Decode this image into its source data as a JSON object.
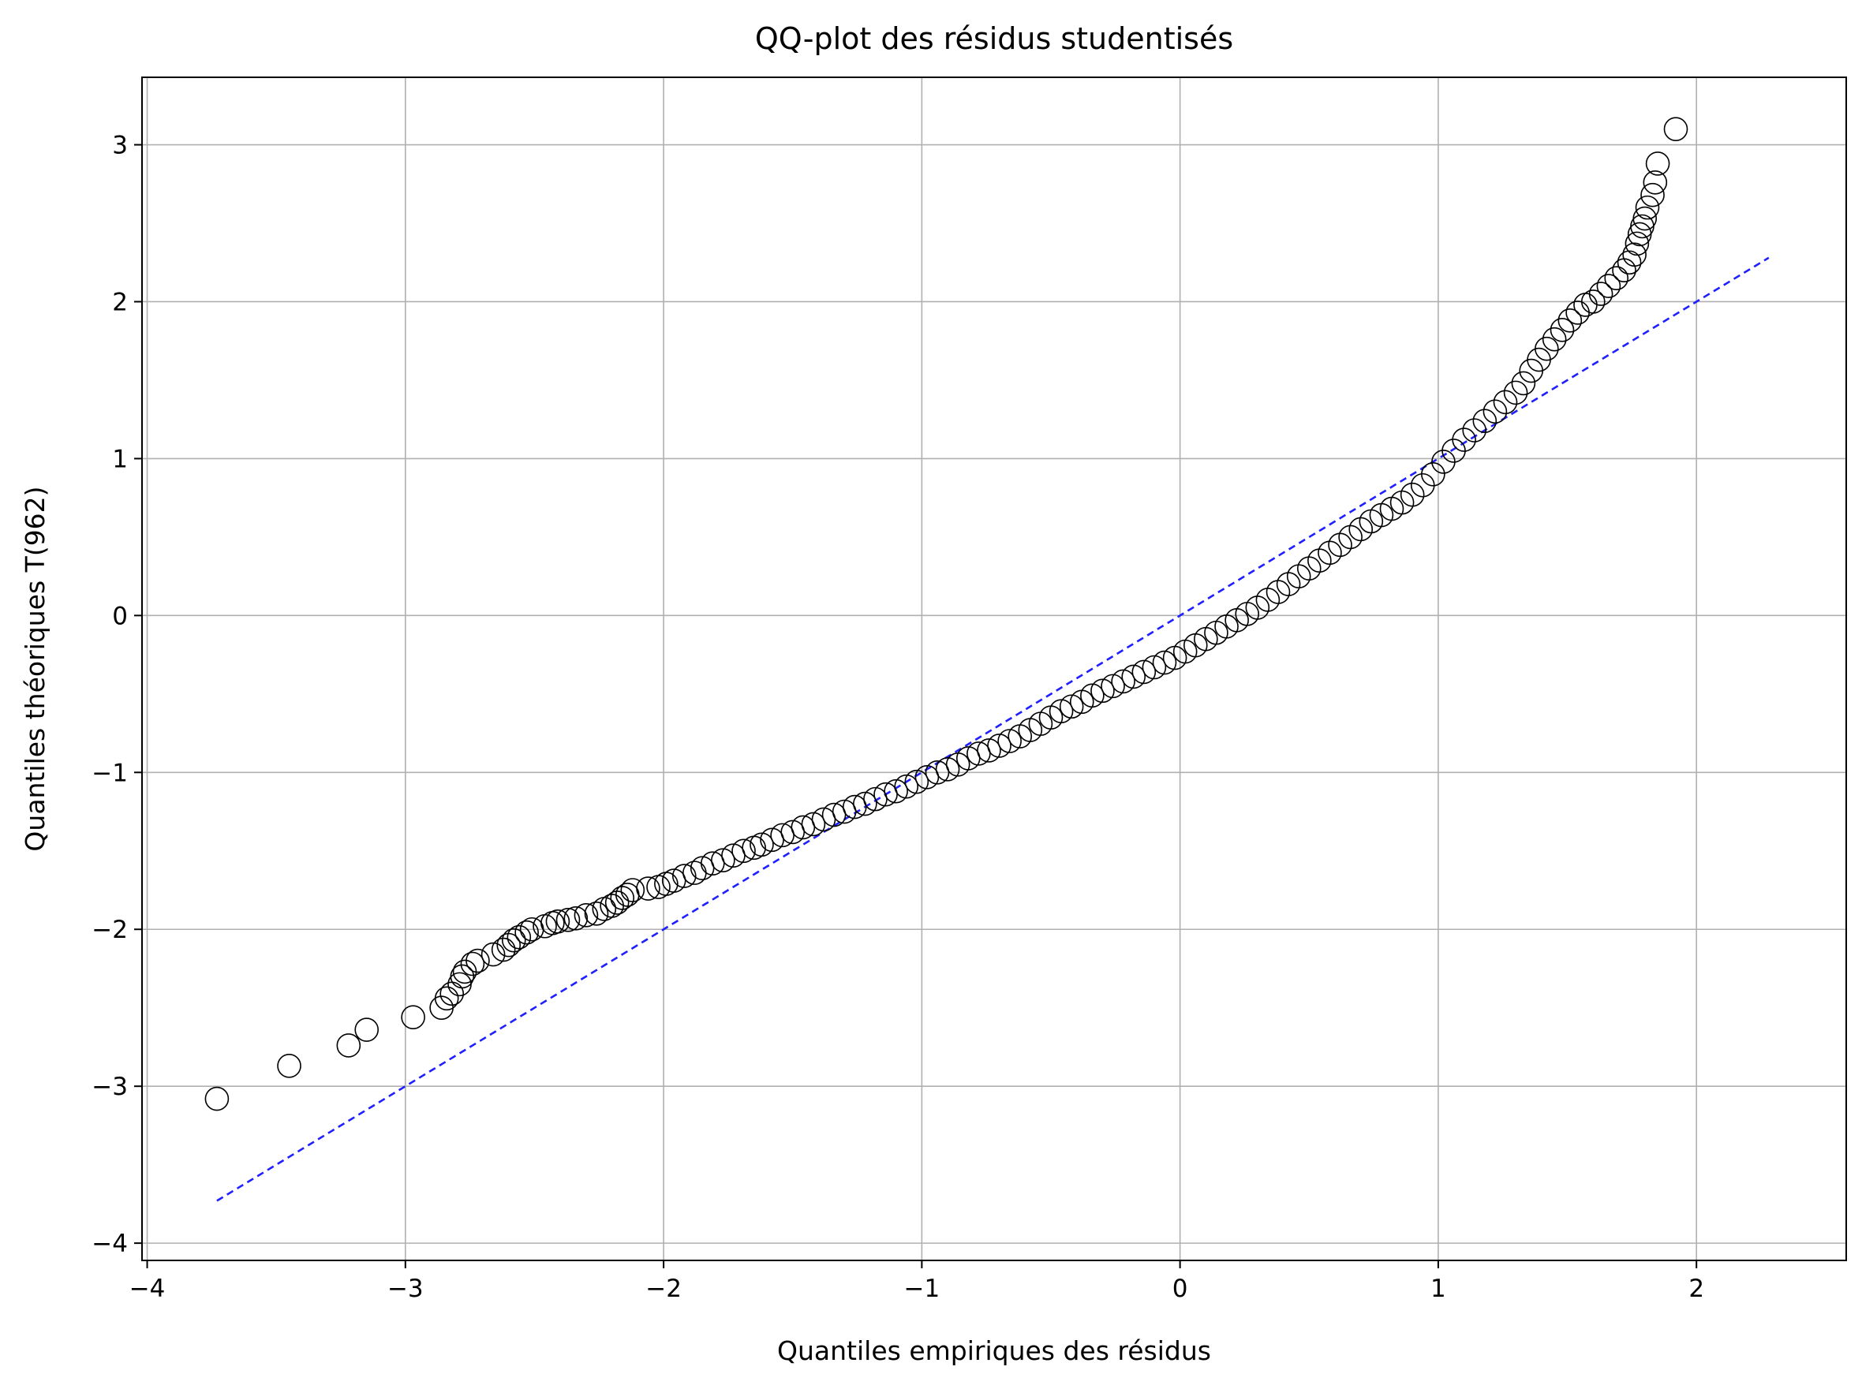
{
  "chart_data": {
    "type": "scatter",
    "title": "QQ-plot des résidus studentisés",
    "xlabel": "Quantiles empiriques des résidus",
    "ylabel": "Quantiles théoriques T(962)",
    "xlim": [
      -4.02,
      2.58
    ],
    "ylim": [
      -4.11,
      3.43
    ],
    "xticks": [
      {
        "value": -4,
        "label": "−4"
      },
      {
        "value": -3,
        "label": "−3"
      },
      {
        "value": -2,
        "label": "−2"
      },
      {
        "value": -1,
        "label": "−1"
      },
      {
        "value": 0,
        "label": "0"
      },
      {
        "value": 1,
        "label": "1"
      },
      {
        "value": 2,
        "label": "2"
      }
    ],
    "yticks": [
      {
        "value": -4,
        "label": "−4"
      },
      {
        "value": -3,
        "label": "−3"
      },
      {
        "value": -2,
        "label": "−2"
      },
      {
        "value": -1,
        "label": "−1"
      },
      {
        "value": 0,
        "label": "0"
      },
      {
        "value": 1,
        "label": "1"
      },
      {
        "value": 2,
        "label": "2"
      },
      {
        "value": 3,
        "label": "3"
      }
    ],
    "grid": true,
    "marker": "open-circle",
    "marker_color": "#000000",
    "reference_line": {
      "style": "dashed",
      "color": "#1f1fff",
      "from": [
        -3.73,
        -3.73
      ],
      "to": [
        2.28,
        2.28
      ]
    },
    "points": [
      [
        -3.73,
        -3.08
      ],
      [
        -3.45,
        -2.87
      ],
      [
        -3.22,
        -2.74
      ],
      [
        -3.15,
        -2.64
      ],
      [
        -2.97,
        -2.56
      ],
      [
        -2.86,
        -2.5
      ],
      [
        -2.84,
        -2.44
      ],
      [
        -2.82,
        -2.41
      ],
      [
        -2.79,
        -2.35
      ],
      [
        -2.78,
        -2.3
      ],
      [
        -2.77,
        -2.27
      ],
      [
        -2.74,
        -2.22
      ],
      [
        -2.72,
        -2.2
      ],
      [
        -2.66,
        -2.16
      ],
      [
        -2.62,
        -2.13
      ],
      [
        -2.6,
        -2.1
      ],
      [
        -2.58,
        -2.07
      ],
      [
        -2.56,
        -2.05
      ],
      [
        -2.53,
        -2.02
      ],
      [
        -2.51,
        -2.0
      ],
      [
        -2.46,
        -1.98
      ],
      [
        -2.43,
        -1.96
      ],
      [
        -2.41,
        -1.95
      ],
      [
        -2.37,
        -1.94
      ],
      [
        -2.34,
        -1.93
      ],
      [
        -2.3,
        -1.91
      ],
      [
        -2.26,
        -1.9
      ],
      [
        -2.23,
        -1.87
      ],
      [
        -2.2,
        -1.85
      ],
      [
        -2.18,
        -1.83
      ],
      [
        -2.16,
        -1.8
      ],
      [
        -2.14,
        -1.78
      ],
      [
        -2.12,
        -1.75
      ],
      [
        -2.06,
        -1.74
      ],
      [
        -2.02,
        -1.73
      ],
      [
        -1.99,
        -1.71
      ],
      [
        -1.96,
        -1.69
      ],
      [
        -1.92,
        -1.66
      ],
      [
        -1.88,
        -1.64
      ],
      [
        -1.85,
        -1.61
      ],
      [
        -1.81,
        -1.58
      ],
      [
        -1.77,
        -1.56
      ],
      [
        -1.73,
        -1.53
      ],
      [
        -1.69,
        -1.5
      ],
      [
        -1.65,
        -1.48
      ],
      [
        -1.62,
        -1.46
      ],
      [
        -1.58,
        -1.43
      ],
      [
        -1.54,
        -1.4
      ],
      [
        -1.5,
        -1.38
      ],
      [
        -1.46,
        -1.35
      ],
      [
        -1.42,
        -1.33
      ],
      [
        -1.38,
        -1.3
      ],
      [
        -1.34,
        -1.27
      ],
      [
        -1.3,
        -1.25
      ],
      [
        -1.26,
        -1.22
      ],
      [
        -1.22,
        -1.2
      ],
      [
        -1.18,
        -1.17
      ],
      [
        -1.14,
        -1.14
      ],
      [
        -1.1,
        -1.12
      ],
      [
        -1.06,
        -1.09
      ],
      [
        -1.02,
        -1.06
      ],
      [
        -0.98,
        -1.03
      ],
      [
        -0.94,
        -1.0
      ],
      [
        -0.9,
        -0.98
      ],
      [
        -0.86,
        -0.95
      ],
      [
        -0.82,
        -0.91
      ],
      [
        -0.78,
        -0.88
      ],
      [
        -0.74,
        -0.86
      ],
      [
        -0.7,
        -0.83
      ],
      [
        -0.66,
        -0.8
      ],
      [
        -0.62,
        -0.77
      ],
      [
        -0.58,
        -0.73
      ],
      [
        -0.54,
        -0.69
      ],
      [
        -0.5,
        -0.65
      ],
      [
        -0.46,
        -0.61
      ],
      [
        -0.42,
        -0.58
      ],
      [
        -0.38,
        -0.55
      ],
      [
        -0.34,
        -0.51
      ],
      [
        -0.3,
        -0.48
      ],
      [
        -0.26,
        -0.45
      ],
      [
        -0.22,
        -0.42
      ],
      [
        -0.18,
        -0.39
      ],
      [
        -0.14,
        -0.36
      ],
      [
        -0.1,
        -0.33
      ],
      [
        -0.06,
        -0.3
      ],
      [
        -0.02,
        -0.27
      ],
      [
        0.02,
        -0.23
      ],
      [
        0.06,
        -0.19
      ],
      [
        0.1,
        -0.15
      ],
      [
        0.14,
        -0.11
      ],
      [
        0.18,
        -0.07
      ],
      [
        0.22,
        -0.03
      ],
      [
        0.26,
        0.01
      ],
      [
        0.3,
        0.05
      ],
      [
        0.34,
        0.1
      ],
      [
        0.38,
        0.15
      ],
      [
        0.42,
        0.2
      ],
      [
        0.46,
        0.25
      ],
      [
        0.5,
        0.3
      ],
      [
        0.54,
        0.35
      ],
      [
        0.58,
        0.4
      ],
      [
        0.62,
        0.45
      ],
      [
        0.66,
        0.5
      ],
      [
        0.7,
        0.55
      ],
      [
        0.74,
        0.6
      ],
      [
        0.78,
        0.64
      ],
      [
        0.82,
        0.68
      ],
      [
        0.86,
        0.72
      ],
      [
        0.9,
        0.77
      ],
      [
        0.94,
        0.83
      ],
      [
        0.98,
        0.9
      ],
      [
        1.02,
        0.98
      ],
      [
        1.06,
        1.05
      ],
      [
        1.1,
        1.12
      ],
      [
        1.14,
        1.18
      ],
      [
        1.18,
        1.24
      ],
      [
        1.22,
        1.3
      ],
      [
        1.26,
        1.36
      ],
      [
        1.3,
        1.42
      ],
      [
        1.33,
        1.48
      ],
      [
        1.36,
        1.56
      ],
      [
        1.39,
        1.63
      ],
      [
        1.42,
        1.7
      ],
      [
        1.45,
        1.76
      ],
      [
        1.48,
        1.82
      ],
      [
        1.51,
        1.88
      ],
      [
        1.54,
        1.93
      ],
      [
        1.57,
        1.98
      ],
      [
        1.6,
        2.0
      ],
      [
        1.63,
        2.05
      ],
      [
        1.66,
        2.1
      ],
      [
        1.69,
        2.15
      ],
      [
        1.72,
        2.2
      ],
      [
        1.74,
        2.25
      ],
      [
        1.76,
        2.3
      ],
      [
        1.77,
        2.37
      ],
      [
        1.78,
        2.43
      ],
      [
        1.79,
        2.48
      ],
      [
        1.8,
        2.53
      ],
      [
        1.81,
        2.6
      ],
      [
        1.83,
        2.68
      ],
      [
        1.84,
        2.76
      ],
      [
        1.85,
        2.88
      ],
      [
        1.92,
        3.1
      ]
    ]
  }
}
